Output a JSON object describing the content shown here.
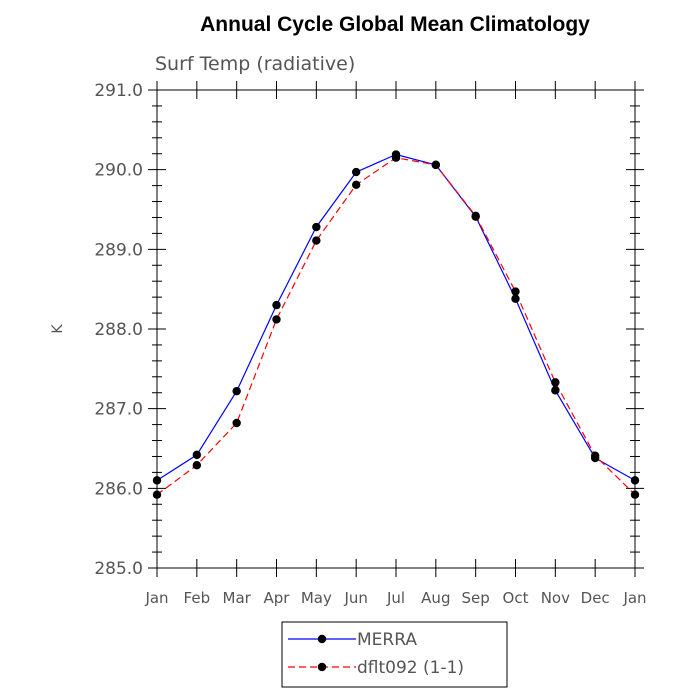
{
  "chart_data": {
    "type": "line",
    "title": "Annual Cycle Global Mean Climatology",
    "subtitle": "Surf Temp (radiative)",
    "xlabel": "",
    "ylabel": "K",
    "categories": [
      "Jan",
      "Feb",
      "Mar",
      "Apr",
      "May",
      "Jun",
      "Jul",
      "Aug",
      "Sep",
      "Oct",
      "Nov",
      "Dec",
      "Jan"
    ],
    "yticks": [
      "285.0",
      "286.0",
      "287.0",
      "288.0",
      "289.0",
      "290.0",
      "291.0"
    ],
    "ylim": [
      285.0,
      291.0
    ],
    "grid": false,
    "legend_placement": "bottom",
    "series": [
      {
        "name": "MERRA",
        "color": "#0000ff",
        "dash": "solid",
        "marker": "filled-circle",
        "values": [
          286.1,
          286.42,
          287.22,
          288.3,
          289.28,
          289.97,
          290.19,
          290.06,
          289.41,
          288.38,
          287.23,
          286.38,
          286.1
        ]
      },
      {
        "name": "dflt092 (1-1)",
        "color": "#ff0000",
        "dash": "dashed",
        "marker": "filled-circle",
        "values": [
          285.92,
          286.29,
          286.82,
          288.12,
          289.11,
          289.81,
          290.15,
          290.06,
          289.42,
          288.47,
          287.33,
          286.41,
          285.92
        ]
      }
    ]
  }
}
